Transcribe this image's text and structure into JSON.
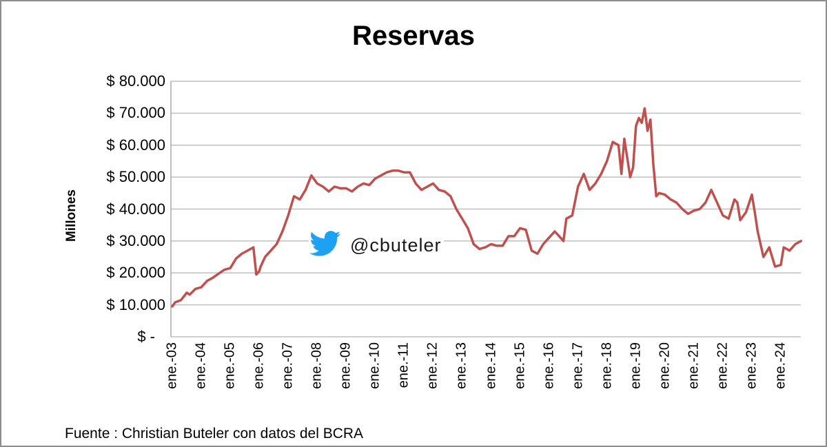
{
  "chart_data": {
    "type": "line",
    "title": "Reservas",
    "xlabel": "",
    "ylabel": "Millones",
    "ylim": [
      0,
      80000
    ],
    "grid": true,
    "legend": null,
    "y_ticks": [
      "$ -",
      "$ 10.000",
      "$ 20.000",
      "$ 30.000",
      "$ 40.000",
      "$ 50.000",
      "$ 60.000",
      "$ 70.000",
      "$ 80.000"
    ],
    "x_ticks": [
      "ene.-03",
      "ene.-04",
      "ene.-05",
      "ene.-06",
      "ene.-07",
      "ene.-08",
      "ene.-09",
      "ene.-10",
      "ene.-11",
      "ene.-12",
      "ene.-13",
      "ene.-14",
      "ene.-15",
      "ene.-16",
      "ene.-17",
      "ene.-18",
      "ene.-19",
      "ene.-20",
      "ene.-21",
      "ene.-22",
      "ene.-23",
      "ene.-24"
    ],
    "series": [
      {
        "name": "Reservas",
        "color": "#c0504d",
        "x_years": [
          2003.0,
          2003.1,
          2003.3,
          2003.5,
          2003.6,
          2003.8,
          2004.0,
          2004.2,
          2004.4,
          2004.6,
          2004.8,
          2005.0,
          2005.2,
          2005.4,
          2005.5,
          2005.7,
          2005.8,
          2005.9,
          2006.0,
          2006.05,
          2006.2,
          2006.4,
          2006.6,
          2006.8,
          2007.0,
          2007.2,
          2007.4,
          2007.6,
          2007.8,
          2008.0,
          2008.2,
          2008.4,
          2008.6,
          2008.8,
          2009.0,
          2009.2,
          2009.4,
          2009.6,
          2009.8,
          2010.0,
          2010.2,
          2010.4,
          2010.6,
          2010.8,
          2011.0,
          2011.2,
          2011.4,
          2011.6,
          2011.8,
          2012.0,
          2012.2,
          2012.4,
          2012.6,
          2012.8,
          2013.0,
          2013.2,
          2013.4,
          2013.6,
          2013.8,
          2014.0,
          2014.2,
          2014.4,
          2014.6,
          2014.8,
          2015.0,
          2015.2,
          2015.4,
          2015.6,
          2015.8,
          2016.0,
          2016.2,
          2016.4,
          2016.5,
          2016.6,
          2016.8,
          2017.0,
          2017.2,
          2017.4,
          2017.6,
          2017.8,
          2018.0,
          2018.2,
          2018.4,
          2018.5,
          2018.6,
          2018.8,
          2018.9,
          2019.0,
          2019.1,
          2019.2,
          2019.3,
          2019.4,
          2019.5,
          2019.6,
          2019.7,
          2019.8,
          2020.0,
          2020.2,
          2020.4,
          2020.6,
          2020.8,
          2021.0,
          2021.2,
          2021.4,
          2021.6,
          2021.8,
          2022.0,
          2022.2,
          2022.4,
          2022.5,
          2022.6,
          2022.8,
          2023.0,
          2023.1,
          2023.2,
          2023.4,
          2023.6,
          2023.8,
          2024.0,
          2024.1,
          2024.3,
          2024.5,
          2024.7
        ],
        "values": [
          9500,
          10800,
          11500,
          13800,
          13200,
          15000,
          15500,
          17500,
          18500,
          19800,
          21000,
          21500,
          24500,
          26000,
          26500,
          27500,
          28000,
          19500,
          20500,
          22000,
          25000,
          27000,
          29000,
          33000,
          38000,
          44000,
          43000,
          46000,
          50500,
          48000,
          47000,
          45500,
          47000,
          46500,
          46500,
          45500,
          47000,
          48000,
          47500,
          49500,
          50500,
          51500,
          52000,
          52000,
          51500,
          51500,
          48000,
          46000,
          47000,
          48000,
          46000,
          45500,
          44000,
          40000,
          37000,
          34000,
          29000,
          27500,
          28000,
          29000,
          28500,
          28500,
          31500,
          31500,
          34000,
          33500,
          27000,
          26000,
          29000,
          31000,
          33000,
          31000,
          30000,
          37000,
          38000,
          47000,
          51000,
          46000,
          48000,
          51000,
          55000,
          61000,
          60000,
          51000,
          62000,
          50000,
          53000,
          66000,
          68500,
          67000,
          71500,
          64500,
          68000,
          54000,
          44000,
          45000,
          44500,
          43000,
          42000,
          40000,
          38500,
          39500,
          40000,
          42000,
          46000,
          42000,
          38000,
          37000,
          43000,
          42000,
          36500,
          39000,
          44500,
          39000,
          33000,
          25000,
          28000,
          22000,
          22500,
          28000,
          27000,
          29000,
          30000
        ]
      }
    ],
    "annotations": [
      "@cbuteler"
    ],
    "source_note": "Fuente : Christian Buteler con datos del BCRA"
  },
  "watermark": {
    "handle": "@cbuteler",
    "icon": "twitter-bird-icon",
    "icon_color": "#1da1f2"
  },
  "footer": {
    "source": "Fuente : Christian Buteler con datos del BCRA"
  },
  "colors": {
    "line": "#c0504d",
    "grid": "#bfbfbf",
    "frame": "#8c8c8c"
  }
}
